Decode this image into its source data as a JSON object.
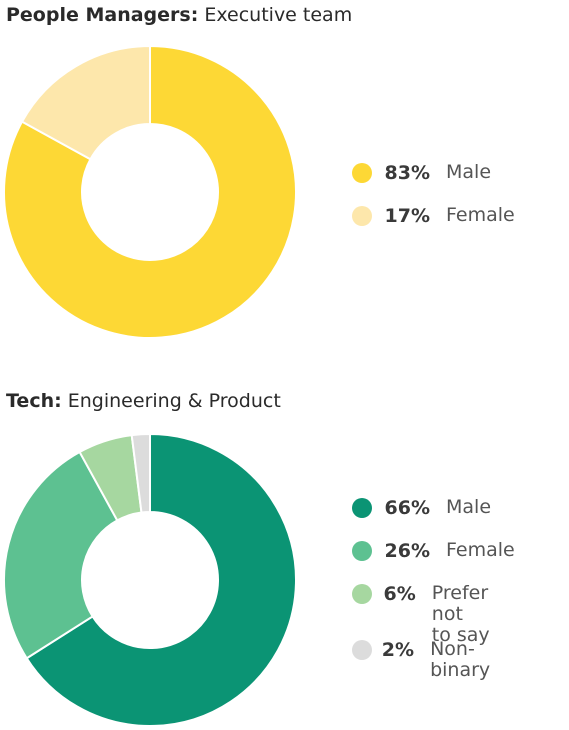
{
  "chart_data": [
    {
      "type": "pie",
      "title_bold": "People Managers:",
      "title_rest": " Executive team",
      "slices": [
        {
          "label": "Male",
          "pct_label": "83%",
          "value": 83,
          "color": "#FDD835"
        },
        {
          "label": "Female",
          "pct_label": "17%",
          "value": 17,
          "color": "#FDE7AB"
        }
      ]
    },
    {
      "type": "pie",
      "title_bold": "Tech:",
      "title_rest": "  Engineering & Product",
      "slices": [
        {
          "label": "Male",
          "pct_label": "66%",
          "value": 66,
          "color": "#0B9474"
        },
        {
          "label": "Female",
          "pct_label": "26%",
          "value": 26,
          "color": "#5DC191"
        },
        {
          "label": "Prefer not\nto say",
          "pct_label": "6%",
          "value": 6,
          "color": "#A6D7A0"
        },
        {
          "label": "Non-binary",
          "pct_label": "2%",
          "value": 2,
          "color": "#DCDCDC"
        }
      ]
    }
  ]
}
